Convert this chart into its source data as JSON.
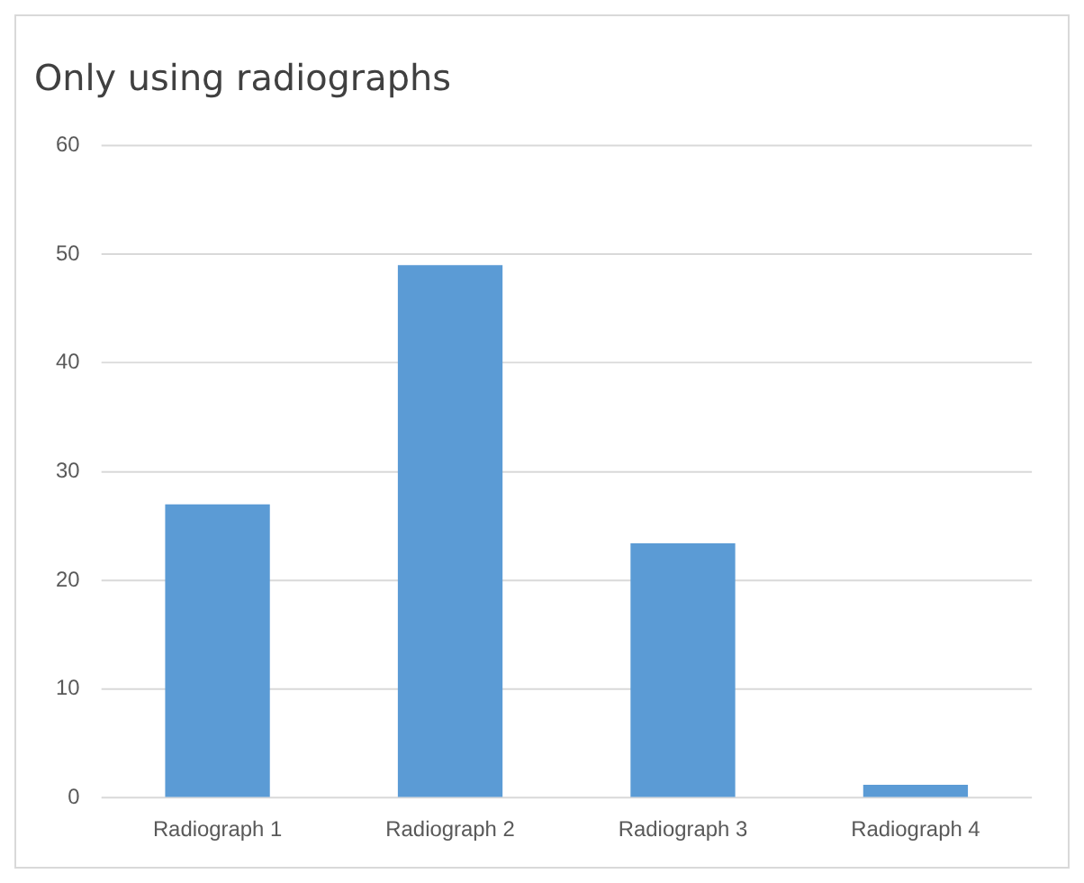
{
  "chart_data": {
    "type": "bar",
    "title": "Only using radiographs",
    "categories": [
      "Radiograph 1",
      "Radiograph 2",
      "Radiograph 3",
      "Radiograph 4"
    ],
    "values": [
      27,
      49,
      23.4,
      1.2
    ],
    "color": "#5b9bd5",
    "ylim": [
      0,
      60
    ],
    "yticks": [
      0,
      10,
      20,
      30,
      40,
      50,
      60
    ],
    "grid": "y"
  }
}
